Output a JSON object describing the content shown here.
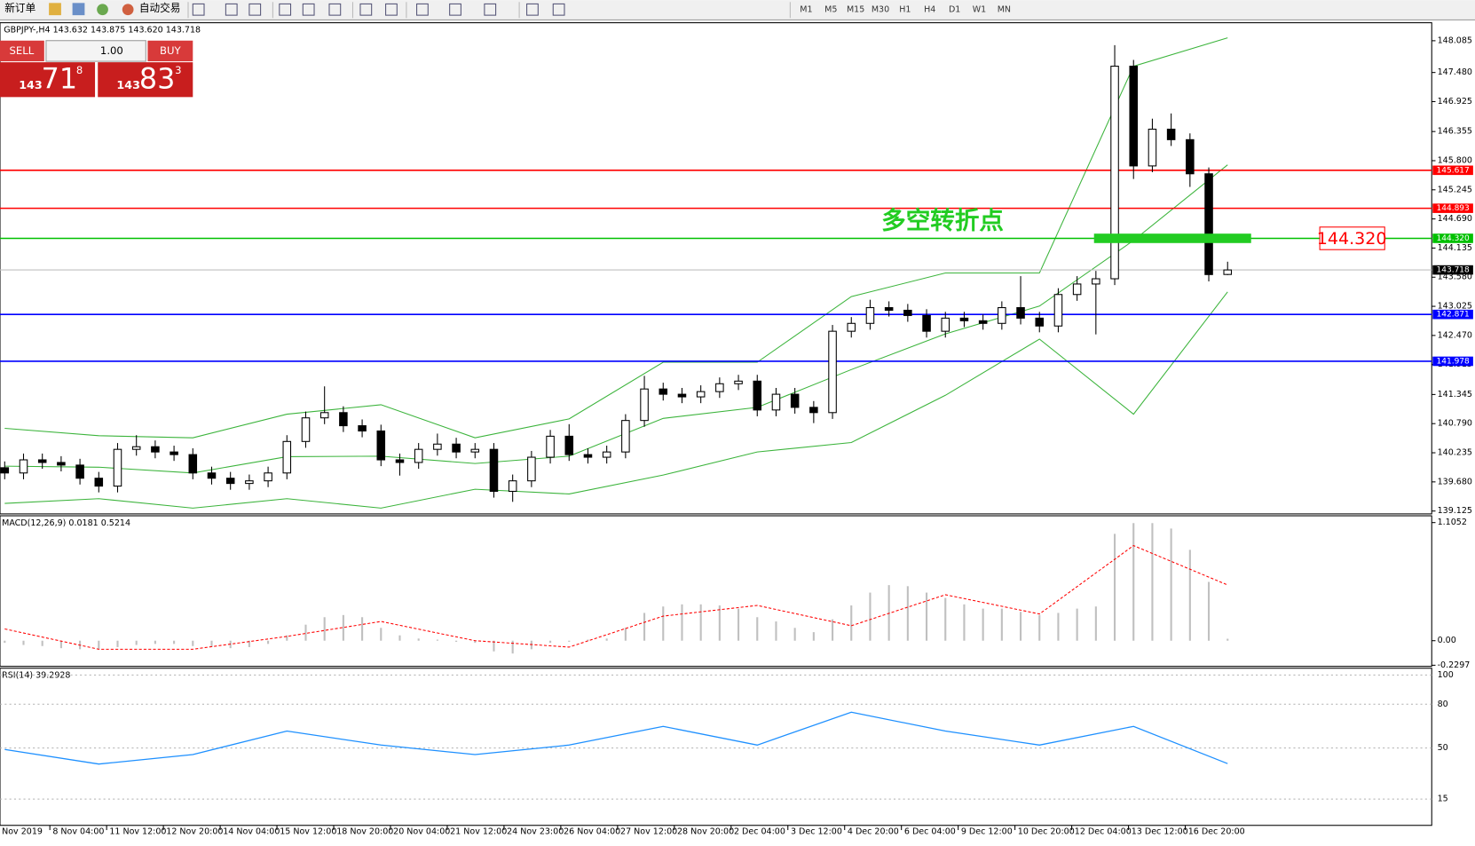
{
  "toolbar": {
    "new_order": "新订单",
    "auto_trading": "自动交易",
    "timeframes": [
      "M1",
      "M5",
      "M15",
      "M30",
      "H1",
      "H4",
      "D1",
      "W1",
      "MN"
    ]
  },
  "trade_panel": {
    "sell": "SELL",
    "buy": "BUY",
    "lot": "1.00",
    "bid": {
      "big": "143",
      "pips": "71",
      "frac": "8"
    },
    "ask": {
      "big": "143",
      "pips": "83",
      "frac": "3"
    }
  },
  "chart_data": [
    {
      "type": "candlestick",
      "title": "GBPJPY-,H4  143.632 143.875 143.620 143.718",
      "candles": [
        [
          139.95,
          140.07,
          139.73,
          139.85
        ],
        [
          139.85,
          140.22,
          139.73,
          140.1
        ],
        [
          140.1,
          140.22,
          139.93,
          140.05
        ],
        [
          140.05,
          140.17,
          139.88,
          140.0
        ],
        [
          140.0,
          140.12,
          139.63,
          139.75
        ],
        [
          139.75,
          139.87,
          139.48,
          139.6
        ],
        [
          139.6,
          140.42,
          139.48,
          140.3
        ],
        [
          140.3,
          140.57,
          140.18,
          140.35
        ],
        [
          140.35,
          140.47,
          140.13,
          140.25
        ],
        [
          140.25,
          140.37,
          140.08,
          140.2
        ],
        [
          140.2,
          140.32,
          139.73,
          139.85
        ],
        [
          139.85,
          139.97,
          139.63,
          139.75
        ],
        [
          139.75,
          139.87,
          139.53,
          139.65
        ],
        [
          139.65,
          139.82,
          139.53,
          139.7
        ],
        [
          139.7,
          139.97,
          139.58,
          139.85
        ],
        [
          139.85,
          140.57,
          139.73,
          140.45
        ],
        [
          140.45,
          141.02,
          140.33,
          140.9
        ],
        [
          140.9,
          141.5,
          140.78,
          141.0
        ],
        [
          141.0,
          141.12,
          140.63,
          140.75
        ],
        [
          140.75,
          140.87,
          140.53,
          140.65
        ],
        [
          140.65,
          140.77,
          139.98,
          140.1
        ],
        [
          140.1,
          140.22,
          139.8,
          140.05
        ],
        [
          140.05,
          140.42,
          139.93,
          140.3
        ],
        [
          140.3,
          140.6,
          140.18,
          140.4
        ],
        [
          140.4,
          140.52,
          140.13,
          140.25
        ],
        [
          140.25,
          140.42,
          140.13,
          140.3
        ],
        [
          140.3,
          140.42,
          139.38,
          139.5
        ],
        [
          139.5,
          139.82,
          139.3,
          139.7
        ],
        [
          139.7,
          140.27,
          139.58,
          140.15
        ],
        [
          140.15,
          140.67,
          140.03,
          140.55
        ],
        [
          140.55,
          140.78,
          140.08,
          140.2
        ],
        [
          140.2,
          140.32,
          140.03,
          140.15
        ],
        [
          140.15,
          140.37,
          140.03,
          140.25
        ],
        [
          140.25,
          140.97,
          140.13,
          140.85
        ],
        [
          140.85,
          141.7,
          140.73,
          141.45
        ],
        [
          141.45,
          141.57,
          141.23,
          141.35
        ],
        [
          141.35,
          141.47,
          141.18,
          141.3
        ],
        [
          141.3,
          141.52,
          141.18,
          141.4
        ],
        [
          141.4,
          141.67,
          141.28,
          141.55
        ],
        [
          141.55,
          141.72,
          141.43,
          141.6
        ],
        [
          141.6,
          141.72,
          140.93,
          141.05
        ],
        [
          141.05,
          141.47,
          140.93,
          141.35
        ],
        [
          141.35,
          141.47,
          140.98,
          141.1
        ],
        [
          141.1,
          141.22,
          140.8,
          141.0
        ],
        [
          141.0,
          142.67,
          140.88,
          142.55
        ],
        [
          142.55,
          142.82,
          142.43,
          142.7
        ],
        [
          142.7,
          143.15,
          142.58,
          143.0
        ],
        [
          143.0,
          143.12,
          142.83,
          142.95
        ],
        [
          142.95,
          143.07,
          142.73,
          142.85
        ],
        [
          142.85,
          142.97,
          142.43,
          142.55
        ],
        [
          142.55,
          142.92,
          142.43,
          142.8
        ],
        [
          142.8,
          142.92,
          142.63,
          142.75
        ],
        [
          142.75,
          142.87,
          142.58,
          142.7
        ],
        [
          142.7,
          143.12,
          142.58,
          143.0
        ],
        [
          143.0,
          143.6,
          142.68,
          142.8
        ],
        [
          142.8,
          142.92,
          142.53,
          142.65
        ],
        [
          142.65,
          143.37,
          142.53,
          143.25
        ],
        [
          143.25,
          143.6,
          143.13,
          143.45
        ],
        [
          143.45,
          143.7,
          142.49,
          143.55
        ],
        [
          143.55,
          148.0,
          143.43,
          147.6
        ],
        [
          147.6,
          147.72,
          145.45,
          145.7
        ],
        [
          145.7,
          146.6,
          145.58,
          146.4
        ],
        [
          146.4,
          146.7,
          146.08,
          146.2
        ],
        [
          146.2,
          146.32,
          145.3,
          145.55
        ],
        [
          145.55,
          145.67,
          143.5,
          143.63
        ],
        [
          143.632,
          143.875,
          143.62,
          143.718
        ]
      ],
      "bands": {
        "color": "#3cb43c",
        "upper": [
          140.7,
          140.56,
          140.52,
          140.97,
          141.15,
          140.52,
          140.88,
          141.96,
          141.96,
          143.21,
          143.66,
          143.66,
          147.6,
          148.14
        ],
        "middle": [
          139.98,
          139.96,
          139.85,
          140.16,
          140.17,
          140.03,
          140.17,
          140.89,
          141.1,
          141.82,
          142.5,
          143.03,
          144.28,
          145.72
        ],
        "lower": [
          139.27,
          139.36,
          139.18,
          139.36,
          139.18,
          139.54,
          139.45,
          139.81,
          140.25,
          140.43,
          141.33,
          142.4,
          140.97,
          143.3
        ]
      },
      "ylim": [
        139.07,
        148.41
      ],
      "yticks": [
        148.085,
        {
          "value": 147.48,
          "label": "147.480"
        },
        146.925,
        146.355,
        {
          "value": 145.8,
          "label": "145.800"
        },
        145.245,
        {
          "value": 144.69,
          "label": "144.690"
        },
        144.135,
        {
          "value": 143.58,
          "label": "143.580"
        },
        143.025,
        {
          "value": 142.47,
          "label": "142.470"
        },
        141.915,
        141.345,
        {
          "value": 140.79,
          "label": "140.790"
        },
        140.235,
        {
          "value": 139.68,
          "label": "139.680"
        },
        139.125
      ],
      "levels": [
        {
          "value": 145.617,
          "label": "145.617",
          "color": "#ff0000"
        },
        {
          "value": 144.893,
          "label": "144.893",
          "color": "#ff0000"
        },
        {
          "value": 144.32,
          "label": "144.320",
          "color": "#00c000"
        },
        {
          "value": 142.871,
          "label": "142.871",
          "color": "#0000ff"
        },
        {
          "value": 141.978,
          "label": "141.978",
          "color": "#0000ff"
        }
      ],
      "current": {
        "value": 143.718,
        "label": "143.718"
      },
      "annotation": {
        "text": "多空转折点",
        "price": {
          "value": 144.32,
          "label": "144.320"
        },
        "color": "#22cc22"
      },
      "categories": [
        "Nov 2019",
        "8 Nov 04:00",
        "11 Nov 12:00",
        "12 Nov 20:00",
        "14 Nov 04:00",
        "15 Nov 12:00",
        "18 Nov 20:00",
        "20 Nov 04:00",
        "21 Nov 12:00",
        "24 Nov 23:00",
        "26 Nov 04:00",
        "27 Nov 12:00",
        "28 Nov 20:00",
        "2 Dec 04:00",
        "3 Dec 12:00",
        "4 Dec 20:00",
        "6 Dec 04:00",
        "9 Dec 12:00",
        "10 Dec 20:00",
        "12 Dec 04:00",
        "13 Dec 12:00",
        "16 Dec 20:00"
      ]
    },
    {
      "type": "bar",
      "title": "MACD(12,26,9) 0.0181 0.5214",
      "color": "#c0c0c0",
      "signal_color": "#ff0000",
      "values": [
        -0.02,
        -0.04,
        -0.05,
        -0.07,
        -0.08,
        -0.08,
        -0.06,
        -0.04,
        -0.03,
        -0.03,
        -0.05,
        -0.06,
        -0.07,
        -0.06,
        -0.03,
        0.05,
        0.15,
        0.22,
        0.24,
        0.22,
        0.12,
        0.05,
        0.02,
        0.01,
        -0.01,
        -0.02,
        -0.1,
        -0.12,
        -0.08,
        -0.02,
        -0.01,
        0.01,
        0.02,
        0.12,
        0.26,
        0.32,
        0.34,
        0.34,
        0.33,
        0.3,
        0.22,
        0.18,
        0.12,
        0.08,
        0.2,
        0.33,
        0.45,
        0.52,
        0.51,
        0.45,
        0.4,
        0.34,
        0.3,
        0.3,
        0.27,
        0.24,
        0.26,
        0.3,
        0.32,
        1.0,
        1.1,
        1.1,
        1.05,
        0.85,
        0.55,
        0.0181
      ],
      "signal": [
        0.11,
        -0.08,
        -0.08,
        0.04,
        0.18,
        0.0,
        -0.06,
        0.23,
        0.33,
        0.14,
        0.43,
        0.25,
        0.89,
        0.5214
      ],
      "ylim": [
        -0.24,
        1.16
      ],
      "yticks": [
        1.1052,
        {
          "value": 0,
          "label": "0.00"
        },
        -0.2297
      ]
    },
    {
      "type": "line",
      "title": "RSI(14) 39.2928",
      "color": "#1e90ff",
      "values": [
        49,
        39,
        45.5,
        61.6,
        52,
        45.5,
        52,
        64.8,
        52,
        74.5,
        61.6,
        52,
        64.8,
        39.2928
      ],
      "ylim": [
        -3,
        104
      ],
      "yticks": [
        100,
        80,
        50,
        15
      ]
    }
  ]
}
